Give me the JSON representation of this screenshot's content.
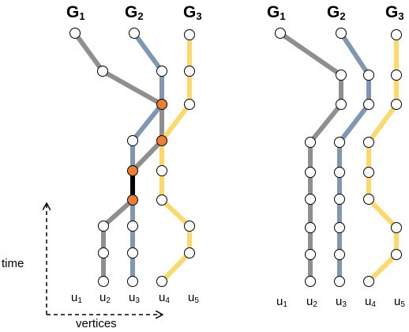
{
  "axes": {
    "y_label": "time",
    "x_label": "vertices"
  },
  "left_panel": {
    "groups": [
      {
        "name": "G",
        "sub": "1"
      },
      {
        "name": "G",
        "sub": "2"
      },
      {
        "name": "G",
        "sub": "3"
      }
    ],
    "vertices": [
      {
        "name": "u",
        "sub": "1"
      },
      {
        "name": "u",
        "sub": "2"
      },
      {
        "name": "u",
        "sub": "3"
      },
      {
        "name": "u",
        "sub": "4"
      },
      {
        "name": "u",
        "sub": "5"
      }
    ]
  },
  "right_panel": {
    "groups": [
      {
        "name": "G",
        "sub": "1"
      },
      {
        "name": "G",
        "sub": "2"
      },
      {
        "name": "G",
        "sub": "3"
      }
    ],
    "vertices": [
      {
        "name": "u",
        "sub": "1"
      },
      {
        "name": "u",
        "sub": "2"
      },
      {
        "name": "u",
        "sub": "3"
      },
      {
        "name": "u",
        "sub": "4"
      },
      {
        "name": "u",
        "sub": "5"
      }
    ]
  },
  "colors": {
    "G1": "#8f8f8f",
    "G2": "#7f97b2",
    "G3": "#fdd86a",
    "shared_edge": "#000000",
    "shared_node": "#ed7d31",
    "node_fill": "#ffffff",
    "node_stroke": "#000000"
  }
}
